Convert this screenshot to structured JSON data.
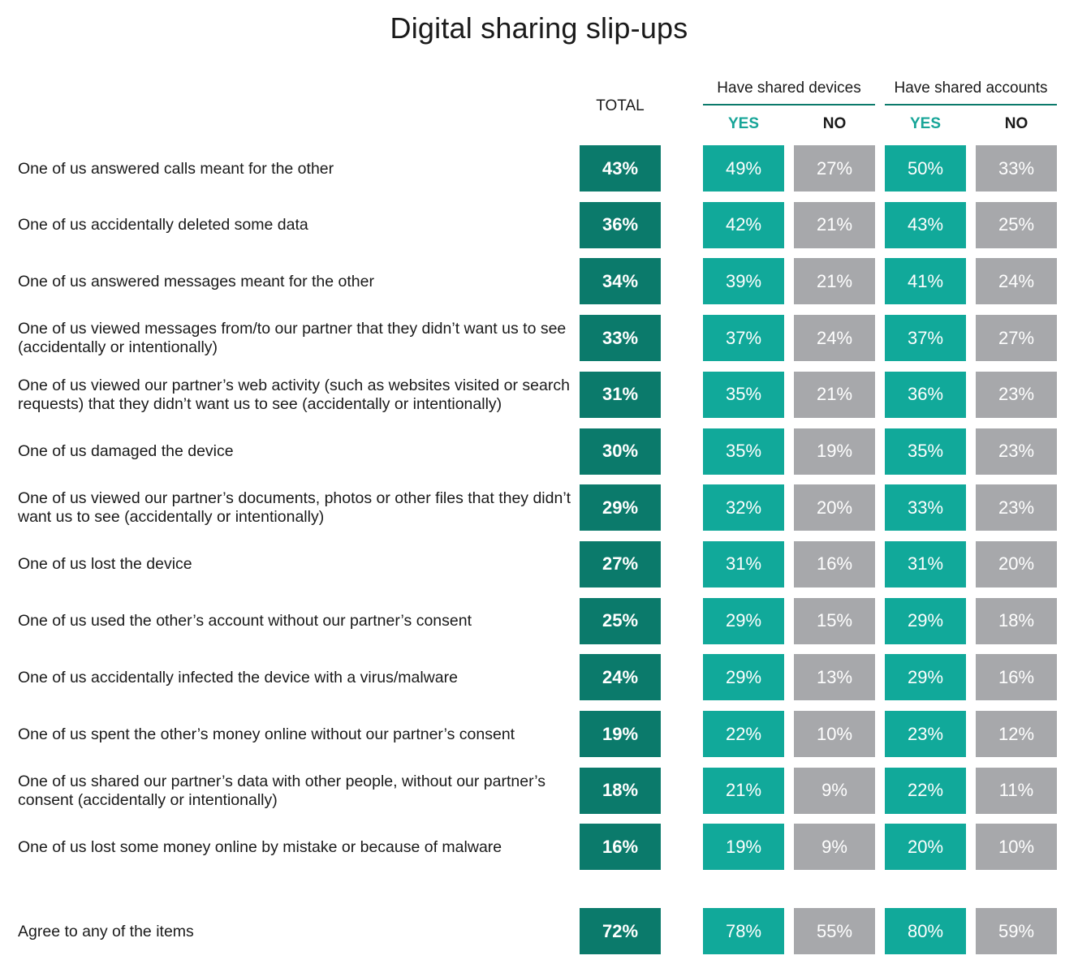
{
  "title": "Digital sharing slip-ups",
  "colors": {
    "total": "#0b7a6b",
    "yes": "#11a99a",
    "no": "#a7a8ab",
    "yes_header": "#17a598",
    "group_line": "#0b7a6b"
  },
  "chart_data": {
    "type": "table",
    "title": "Digital sharing slip-ups",
    "columns": [
      {
        "key": "total",
        "label": "TOTAL",
        "group": ""
      },
      {
        "key": "dev_yes",
        "label": "YES",
        "group": "Have shared devices"
      },
      {
        "key": "dev_no",
        "label": "NO",
        "group": "Have shared devices"
      },
      {
        "key": "acc_yes",
        "label": "YES",
        "group": "Have shared accounts"
      },
      {
        "key": "acc_no",
        "label": "NO",
        "group": "Have shared accounts"
      }
    ],
    "groups": [
      "Have shared devices",
      "Have shared accounts"
    ],
    "rows": [
      {
        "label": "One of us answered calls meant for the other",
        "values": [
          "43%",
          "49%",
          "27%",
          "50%",
          "33%"
        ]
      },
      {
        "label": "One of us accidentally deleted some data",
        "values": [
          "36%",
          "42%",
          "21%",
          "43%",
          "25%"
        ]
      },
      {
        "label": "One of us answered messages meant for the other",
        "values": [
          "34%",
          "39%",
          "21%",
          "41%",
          "24%"
        ]
      },
      {
        "label": "One of us viewed messages from/to our partner that they didn’t want us to see (accidentally or intentionally)",
        "values": [
          "33%",
          "37%",
          "24%",
          "37%",
          "27%"
        ]
      },
      {
        "label": "One of us viewed our partner’s web activity (such as websites visited or search requests) that they didn’t want us to see (accidentally or intentionally)",
        "values": [
          "31%",
          "35%",
          "21%",
          "36%",
          "23%"
        ]
      },
      {
        "label": "One of us damaged the device",
        "values": [
          "30%",
          "35%",
          "19%",
          "35%",
          "23%"
        ]
      },
      {
        "label": "One of us viewed our partner’s documents, photos or other files that they didn’t want us to see (accidentally or intentionally)",
        "values": [
          "29%",
          "32%",
          "20%",
          "33%",
          "23%"
        ]
      },
      {
        "label": "One of us lost the device",
        "values": [
          "27%",
          "31%",
          "16%",
          "31%",
          "20%"
        ]
      },
      {
        "label": "One of us used the other’s account without our partner’s consent",
        "values": [
          "25%",
          "29%",
          "15%",
          "29%",
          "18%"
        ]
      },
      {
        "label": "One of us accidentally infected the device with a virus/malware",
        "values": [
          "24%",
          "29%",
          "13%",
          "29%",
          "16%"
        ]
      },
      {
        "label": "One of us spent the other’s money online without our partner’s consent",
        "values": [
          "19%",
          "22%",
          "10%",
          "23%",
          "12%"
        ]
      },
      {
        "label": "One of us shared our partner’s data with other people, without our partner’s consent (accidentally or intentionally)",
        "values": [
          "18%",
          "21%",
          "9%",
          "22%",
          "11%"
        ]
      },
      {
        "label": "One of us lost some money online by mistake or because of malware",
        "values": [
          "16%",
          "19%",
          "9%",
          "20%",
          "10%"
        ]
      }
    ],
    "summary": {
      "label": "Agree to any of the items",
      "values": [
        "72%",
        "78%",
        "55%",
        "80%",
        "59%"
      ]
    }
  }
}
